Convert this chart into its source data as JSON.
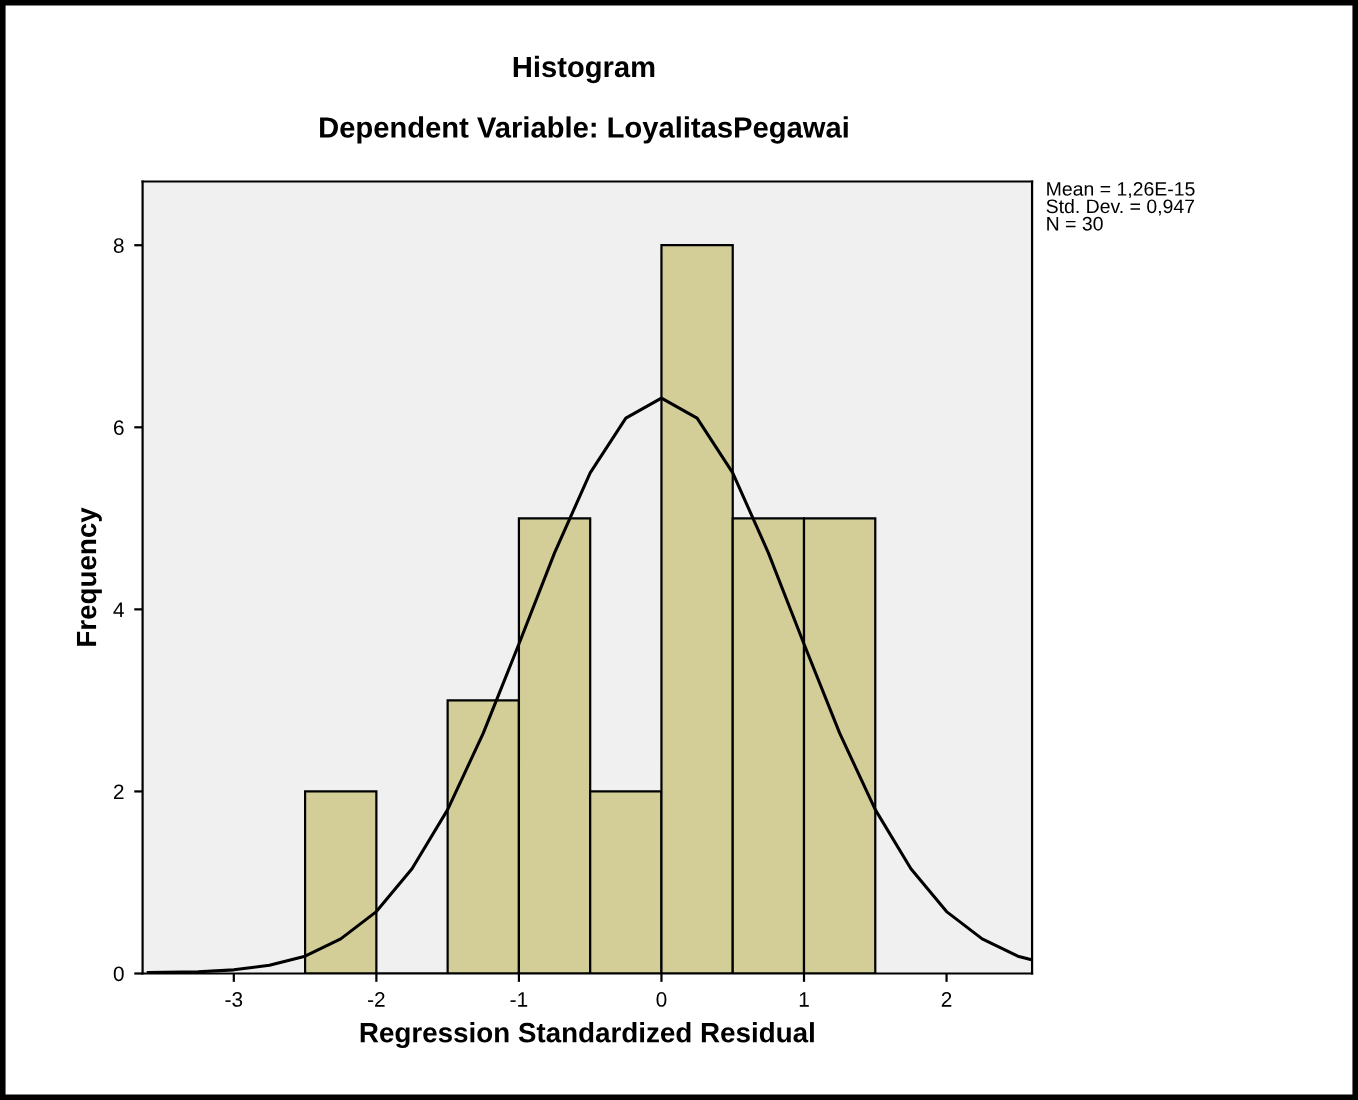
{
  "chart_data": {
    "type": "histogram",
    "title": "Histogram",
    "subtitle": "Dependent Variable: LoyalitasPegawai",
    "xlabel": "Regression Standardized Residual",
    "ylabel": "Frequency",
    "bins": [
      -2.5,
      -2.0,
      -1.5,
      -1.0,
      -0.5,
      0.0,
      0.5,
      1.0,
      1.5
    ],
    "values": [
      2,
      0,
      3,
      5,
      2,
      8,
      5,
      5
    ],
    "color": "#d3ce97",
    "series": [
      {
        "type": "line",
        "color": "#000000",
        "x": [
          -3.6,
          -3.25,
          -3.0,
          -2.75,
          -2.5,
          -2.25,
          -2.0,
          -1.75,
          -1.5,
          -1.25,
          -1.0,
          -0.75,
          -0.5,
          -0.25,
          0.0,
          0.25,
          0.5,
          0.75,
          1.0,
          1.25,
          1.5,
          1.75,
          2.0,
          2.25,
          2.5,
          2.6
        ],
        "values": [
          0.01,
          0.02,
          0.04,
          0.09,
          0.19,
          0.38,
          0.68,
          1.15,
          1.8,
          2.64,
          3.62,
          4.62,
          5.5,
          6.1,
          6.32,
          6.1,
          5.5,
          4.62,
          3.62,
          2.64,
          1.8,
          1.15,
          0.68,
          0.38,
          0.19,
          0.15
        ]
      }
    ],
    "xlim": [
      -3.64,
      2.6
    ],
    "ylim": [
      0,
      8.7
    ],
    "xticks": [
      {
        "value": -3,
        "label": "-3"
      },
      {
        "value": -2,
        "label": "-2"
      },
      {
        "value": -1,
        "label": "-1"
      },
      0,
      1,
      2
    ],
    "yticks": [
      0,
      2,
      4,
      6,
      8
    ],
    "annotations": [
      "Mean = 1,26E-15\nStd. Dev. = 0,947\nN = 30"
    ],
    "grid": false,
    "legend": false
  }
}
